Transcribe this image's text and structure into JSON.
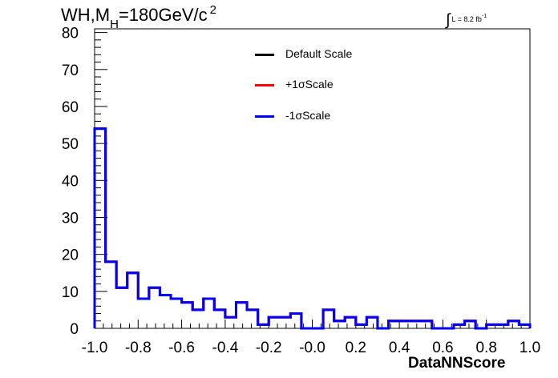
{
  "title": {
    "main": "WH,M",
    "sub": "H",
    "rest": "=180GeV/c",
    "sup": "2"
  },
  "lumi": {
    "integral": "∫",
    "text": "L = 8.2 fb",
    "sup": "-1"
  },
  "legend": [
    {
      "label": "Default Scale",
      "color": "#000000"
    },
    {
      "label": "+1σScale",
      "color": "#ff0000"
    },
    {
      "label": "-1σScale",
      "color": "#0000ff"
    }
  ],
  "chart_data": {
    "type": "histogram",
    "xlabel": "DataNNScore",
    "ylabel": "",
    "xlim": [
      -1.0,
      1.0
    ],
    "ylim": [
      0,
      81
    ],
    "bin_edges": [
      -1.0,
      -0.95,
      -0.9,
      -0.85,
      -0.8,
      -0.75,
      -0.7,
      -0.65,
      -0.6,
      -0.55,
      -0.5,
      -0.45,
      -0.4,
      -0.35,
      -0.3,
      -0.25,
      -0.2,
      -0.15,
      -0.1,
      -0.05,
      0.0,
      0.05,
      0.1,
      0.15,
      0.2,
      0.25,
      0.3,
      0.35,
      0.4,
      0.45,
      0.5,
      0.55,
      0.6,
      0.65,
      0.7,
      0.75,
      0.8,
      0.85,
      0.9,
      0.95,
      1.0
    ],
    "series": [
      {
        "name": "Default Scale",
        "color": "#000000",
        "values": [
          54,
          18,
          11,
          15,
          8,
          11,
          9,
          8,
          7,
          5,
          8,
          5,
          3,
          7,
          5,
          1,
          3,
          3,
          4,
          0,
          0,
          5,
          2,
          3,
          1,
          3,
          0,
          2,
          2,
          2,
          2,
          0,
          0,
          1,
          2,
          0,
          1,
          1,
          2,
          1
        ]
      },
      {
        "name": "+1σScale",
        "color": "#ff0000",
        "values": [
          54,
          18,
          11,
          15,
          8,
          11,
          9,
          8,
          7,
          5,
          8,
          5,
          3,
          7,
          5,
          1,
          3,
          3,
          4,
          0,
          0,
          5,
          2,
          3,
          1,
          3,
          0,
          2,
          2,
          2,
          2,
          0,
          0,
          1,
          2,
          0,
          1,
          1,
          2,
          1
        ]
      },
      {
        "name": "-1σScale",
        "color": "#0000ff",
        "values": [
          54,
          18,
          11,
          15,
          8,
          11,
          9,
          8,
          7,
          5,
          8,
          5,
          3,
          7,
          5,
          1,
          3,
          3,
          4,
          0,
          0,
          5,
          2,
          3,
          1,
          3,
          0,
          2,
          2,
          2,
          2,
          0,
          0,
          1,
          2,
          0,
          1,
          1,
          2,
          1
        ]
      }
    ],
    "y_ticks": [
      0,
      10,
      20,
      30,
      40,
      50,
      60,
      70,
      80
    ],
    "x_ticks": [
      -1.0,
      -0.8,
      -0.6,
      -0.4,
      -0.2,
      0.0,
      0.2,
      0.4,
      0.6,
      0.8,
      1.0
    ],
    "x_tick_labels": [
      "-1.0",
      "-0.8",
      "-0.6",
      "-0.4",
      "-0.2",
      "-0.0",
      "0.2",
      "0.4",
      "0.6",
      "0.8",
      "1.0"
    ],
    "y_tick_labels": [
      "0",
      "10",
      "20",
      "30",
      "40",
      "50",
      "60",
      "70",
      "80"
    ],
    "grid": false,
    "legend_position": "top-center"
  }
}
